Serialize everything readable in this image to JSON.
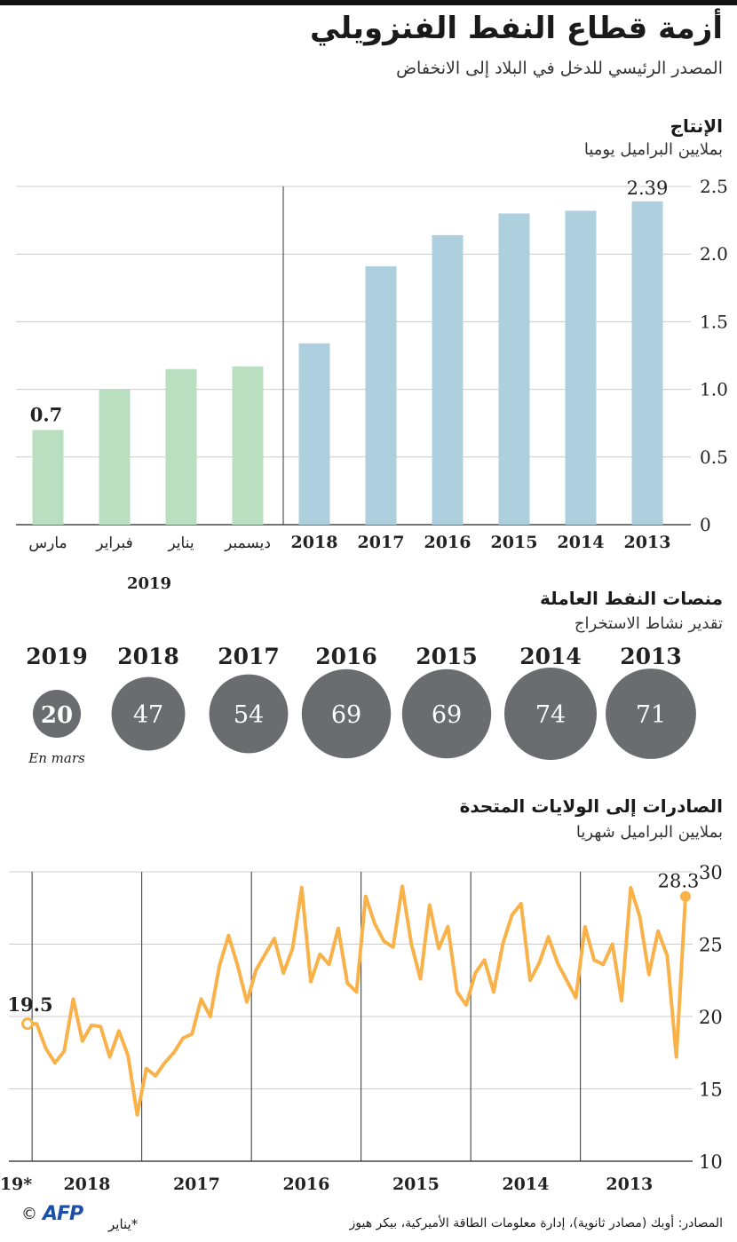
{
  "header": {
    "title": "أزمة قطاع النفط الفنزويلي",
    "subtitle": "المصدر الرئيسي للدخل في البلاد إلى الانخفاض"
  },
  "production": {
    "title": "الإنتاج",
    "unit": "بملايين البراميل يوميا",
    "year_group_label": "2019"
  },
  "rigs": {
    "title": "منصات النفط العاملة",
    "subtitle": "تقدير نشاط الاستخراج",
    "note": "En mars",
    "items": [
      {
        "year": "2013",
        "value": 71
      },
      {
        "year": "2014",
        "value": 74
      },
      {
        "year": "2015",
        "value": 69
      },
      {
        "year": "2016",
        "value": 69
      },
      {
        "year": "2017",
        "value": 54
      },
      {
        "year": "2018",
        "value": 47
      },
      {
        "year": "2019",
        "value": 20
      }
    ]
  },
  "exports": {
    "title": "الصادرات إلى الولايات المتحدة",
    "unit": "بملايين البراميل شهريا"
  },
  "footer": {
    "source": "المصادر: أوبك (مصادر ثانوية)، إدارة معلومات الطاقة الأميركية، بيكر هيوز",
    "note": "*يناير",
    "copyright": "©",
    "logo": "AFP"
  },
  "colors": {
    "blue_bar": "#aecfde",
    "green_bar": "#b9dfc0",
    "circle": "#6b6c70",
    "line": "#f9b24a",
    "grid": "#cccccc"
  },
  "chart_data": [
    {
      "type": "bar",
      "title": "الإنتاج",
      "ylabel": "بملايين البراميل يوميا",
      "categories": [
        "2013",
        "2014",
        "2015",
        "2016",
        "2017",
        "2018",
        "ديسمبر",
        "يناير",
        "فبراير",
        "مارس"
      ],
      "values": [
        2.39,
        2.32,
        2.3,
        2.14,
        1.91,
        1.34,
        1.17,
        1.15,
        1.0,
        0.7
      ],
      "ylim": [
        0,
        2.5
      ],
      "yticks": [
        "0",
        "0.5",
        "1.0",
        "1.5",
        "2.0",
        "2.5"
      ],
      "labels": {
        "first": "2.39",
        "last": "0.7"
      },
      "colors": [
        "blue",
        "blue",
        "blue",
        "blue",
        "blue",
        "blue",
        "green",
        "green",
        "green",
        "green"
      ],
      "grid": true
    },
    {
      "type": "line",
      "title": "الصادرات إلى الولايات المتحدة",
      "ylabel": "بملايين البراميل شهريا",
      "ylim": [
        10,
        30
      ],
      "yticks": [
        "10",
        "15",
        "20",
        "25",
        "30"
      ],
      "year_labels": [
        "2013",
        "2014",
        "2015",
        "2016",
        "2017",
        "2018",
        "19*"
      ],
      "x": [
        "2013-01",
        "2013-02",
        "2013-03",
        "2013-04",
        "2013-05",
        "2013-06",
        "2013-07",
        "2013-08",
        "2013-09",
        "2013-10",
        "2013-11",
        "2013-12",
        "2014-01",
        "2014-02",
        "2014-03",
        "2014-04",
        "2014-05",
        "2014-06",
        "2014-07",
        "2014-08",
        "2014-09",
        "2014-10",
        "2014-11",
        "2014-12",
        "2015-01",
        "2015-02",
        "2015-03",
        "2015-04",
        "2015-05",
        "2015-06",
        "2015-07",
        "2015-08",
        "2015-09",
        "2015-10",
        "2015-11",
        "2015-12",
        "2016-01",
        "2016-02",
        "2016-03",
        "2016-04",
        "2016-05",
        "2016-06",
        "2016-07",
        "2016-08",
        "2016-09",
        "2016-10",
        "2016-11",
        "2016-12",
        "2017-01",
        "2017-02",
        "2017-03",
        "2017-04",
        "2017-05",
        "2017-06",
        "2017-07",
        "2017-08",
        "2017-09",
        "2017-10",
        "2017-11",
        "2017-12",
        "2018-01",
        "2018-02",
        "2018-03",
        "2018-04",
        "2018-05",
        "2018-06",
        "2018-07",
        "2018-08",
        "2018-09",
        "2018-10",
        "2018-11",
        "2018-12",
        "2019-01"
      ],
      "y": [
        28.3,
        17.2,
        24.2,
        25.9,
        22.9,
        26.9,
        28.9,
        21.1,
        25.0,
        23.6,
        23.9,
        26.2,
        21.3,
        22.5,
        23.7,
        25.5,
        23.7,
        22.5,
        27.8,
        27.0,
        25.0,
        21.7,
        23.9,
        23.0,
        20.8,
        21.7,
        26.2,
        24.7,
        27.7,
        22.6,
        25.0,
        29.0,
        24.8,
        25.2,
        26.4,
        28.3,
        21.7,
        22.3,
        26.1,
        23.6,
        24.3,
        22.4,
        28.9,
        24.7,
        23.0,
        25.4,
        24.3,
        23.2,
        21.0,
        23.5,
        25.6,
        23.5,
        20.0,
        21.2,
        18.8,
        18.5,
        17.5,
        16.8,
        15.9,
        16.4,
        13.2,
        17.3,
        19.0,
        17.2,
        19.3,
        19.4,
        18.3,
        21.2,
        17.6,
        16.8,
        17.8,
        19.5,
        19.5
      ],
      "labels": {
        "first": "28.3",
        "last": "19.5"
      },
      "grid": true
    }
  ]
}
